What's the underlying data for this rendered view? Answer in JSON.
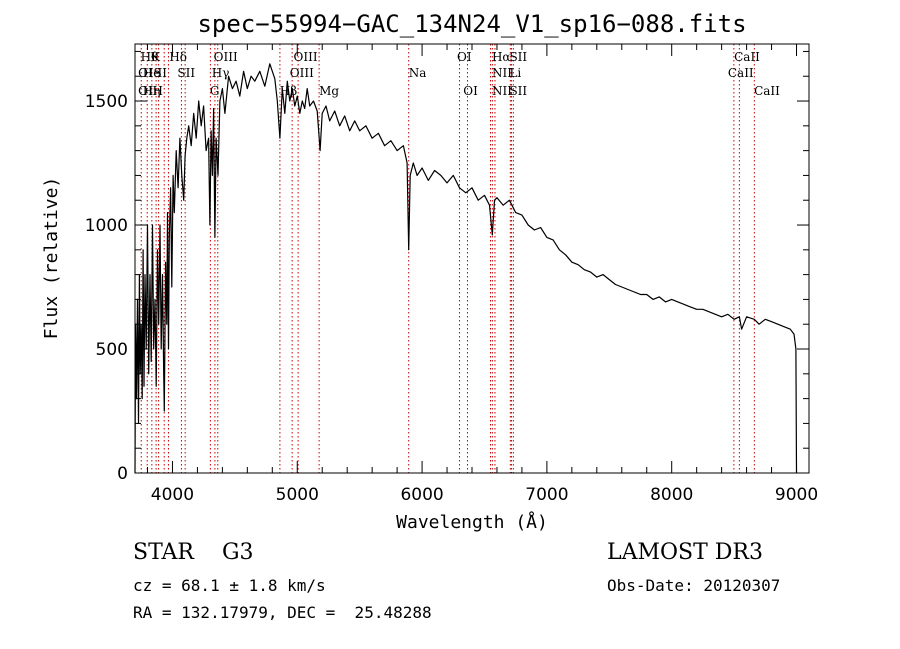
{
  "chart_data": {
    "type": "line",
    "title": "spec−55994−GAC_134N24_V1_sp16−088.fits",
    "xlabel": "Wavelength (Å)",
    "ylabel": "Flux (relative)",
    "xlim": [
      3700,
      9100
    ],
    "ylim": [
      0,
      1730
    ],
    "x_ticks": [
      4000,
      5000,
      6000,
      7000,
      8000,
      9000
    ],
    "y_ticks": [
      0,
      500,
      1000,
      1500
    ],
    "series": [
      {
        "name": "flux",
        "x": [
          3700,
          3705,
          3712,
          3720,
          3728,
          3735,
          3742,
          3750,
          3758,
          3765,
          3772,
          3780,
          3790,
          3800,
          3810,
          3820,
          3830,
          3840,
          3850,
          3860,
          3870,
          3880,
          3890,
          3900,
          3910,
          3920,
          3930,
          3935,
          3945,
          3955,
          3960,
          3968,
          3975,
          3985,
          3995,
          4005,
          4015,
          4030,
          4045,
          4060,
          4075,
          4090,
          4101,
          4115,
          4130,
          4150,
          4170,
          4190,
          4210,
          4230,
          4250,
          4270,
          4290,
          4300,
          4310,
          4320,
          4330,
          4340,
          4350,
          4365,
          4380,
          4400,
          4420,
          4450,
          4480,
          4510,
          4540,
          4570,
          4600,
          4630,
          4660,
          4700,
          4740,
          4780,
          4820,
          4840,
          4861,
          4880,
          4900,
          4920,
          4940,
          4960,
          4980,
          5000,
          5020,
          5040,
          5060,
          5080,
          5100,
          5130,
          5160,
          5183,
          5200,
          5230,
          5260,
          5300,
          5340,
          5380,
          5420,
          5460,
          5500,
          5550,
          5600,
          5650,
          5700,
          5750,
          5800,
          5850,
          5880,
          5893,
          5905,
          5930,
          5960,
          6000,
          6050,
          6100,
          6150,
          6200,
          6250,
          6300,
          6350,
          6400,
          6450,
          6500,
          6540,
          6563,
          6580,
          6600,
          6650,
          6700,
          6750,
          6800,
          6850,
          6900,
          6950,
          7000,
          7050,
          7100,
          7150,
          7200,
          7250,
          7300,
          7350,
          7400,
          7450,
          7500,
          7550,
          7600,
          7650,
          7700,
          7750,
          7800,
          7850,
          7900,
          7950,
          8000,
          8050,
          8100,
          8150,
          8200,
          8250,
          8300,
          8350,
          8400,
          8450,
          8500,
          8542,
          8560,
          8600,
          8662,
          8700,
          8750,
          8800,
          8850,
          8900,
          8950,
          8980,
          8995,
          9000
        ],
        "y": [
          0,
          600,
          300,
          700,
          200,
          800,
          400,
          600,
          300,
          900,
          350,
          800,
          500,
          1000,
          400,
          800,
          450,
          1000,
          500,
          700,
          350,
          900,
          600,
          1000,
          500,
          800,
          400,
          250,
          850,
          600,
          1050,
          500,
          950,
          1150,
          750,
          1200,
          1050,
          1300,
          1150,
          1350,
          1200,
          1100,
          1280,
          1350,
          1400,
          1320,
          1450,
          1350,
          1500,
          1400,
          1480,
          1300,
          1350,
          1000,
          1380,
          1200,
          1470,
          950,
          1350,
          1200,
          1500,
          1550,
          1450,
          1600,
          1550,
          1580,
          1520,
          1620,
          1550,
          1600,
          1580,
          1620,
          1560,
          1650,
          1590,
          1500,
          1350,
          1550,
          1450,
          1580,
          1500,
          1550,
          1480,
          1520,
          1450,
          1500,
          1470,
          1550,
          1480,
          1500,
          1460,
          1300,
          1450,
          1480,
          1420,
          1460,
          1400,
          1440,
          1380,
          1420,
          1380,
          1400,
          1350,
          1370,
          1320,
          1340,
          1300,
          1320,
          1250,
          900,
          1200,
          1250,
          1200,
          1230,
          1180,
          1220,
          1200,
          1170,
          1200,
          1150,
          1130,
          1150,
          1100,
          1120,
          1080,
          960,
          1100,
          1110,
          1080,
          1100,
          1050,
          1040,
          1000,
          980,
          990,
          950,
          940,
          900,
          880,
          850,
          840,
          820,
          810,
          790,
          800,
          780,
          760,
          750,
          740,
          730,
          720,
          720,
          700,
          710,
          690,
          700,
          690,
          680,
          670,
          660,
          660,
          650,
          640,
          630,
          640,
          620,
          630,
          580,
          630,
          620,
          600,
          620,
          610,
          600,
          590,
          580,
          560,
          500,
          0
        ]
      }
    ],
    "lines": [
      {
        "x": 3750,
        "labels": [
          "Hθ",
          "OII",
          "OII"
        ]
      },
      {
        "x": 3798,
        "labels": []
      },
      {
        "x": 3835,
        "labels": [
          "K"
        ]
      },
      {
        "x": 3869,
        "labels": [
          "He"
        ]
      },
      {
        "x": 3889,
        "labels": [
          "Hη"
        ]
      },
      {
        "x": 3934,
        "labels": [
          "K"
        ]
      },
      {
        "x": 3968,
        "labels": [
          "H"
        ]
      },
      {
        "x": 4072,
        "labels": []
      },
      {
        "x": 4102,
        "labels": [
          "Hδ",
          "SII"
        ]
      },
      {
        "x": 4304,
        "labels": [
          "G"
        ]
      },
      {
        "x": 4340,
        "labels": [
          "Hγ"
        ]
      },
      {
        "x": 4363,
        "labels": [
          "OIII"
        ]
      },
      {
        "x": 4861,
        "labels": [
          "Hβ"
        ]
      },
      {
        "x": 4959,
        "labels": [
          "OIII"
        ]
      },
      {
        "x": 5007,
        "labels": [
          "OIII"
        ]
      },
      {
        "x": 5175,
        "labels": [
          "Mg"
        ]
      },
      {
        "x": 5893,
        "labels": [
          "Na"
        ]
      },
      {
        "x": 6300,
        "labels": [
          "OI"
        ]
      },
      {
        "x": 6364,
        "labels": [
          "OI"
        ]
      },
      {
        "x": 6548,
        "labels": [
          "NII"
        ]
      },
      {
        "x": 6563,
        "labels": [
          "Hα"
        ]
      },
      {
        "x": 6584,
        "labels": [
          "NII"
        ]
      },
      {
        "x": 6707,
        "labels": [
          "Li"
        ]
      },
      {
        "x": 6716,
        "labels": [
          "SII"
        ]
      },
      {
        "x": 6731,
        "labels": [
          "SII"
        ]
      },
      {
        "x": 8498,
        "labels": [
          "CaII"
        ]
      },
      {
        "x": 8542,
        "labels": [
          "CaII"
        ]
      },
      {
        "x": 8662,
        "labels": [
          "CaII"
        ]
      }
    ],
    "line_labels": [
      {
        "x": 3745,
        "row": 1,
        "text": "Hθ"
      },
      {
        "x": 3828,
        "row": 1,
        "text": "K"
      },
      {
        "x": 3725,
        "row": 2,
        "text": "OI"
      },
      {
        "x": 3762,
        "row": 2,
        "text": "He"
      },
      {
        "x": 3810,
        "row": 2,
        "text": "I"
      },
      {
        "x": 3848,
        "row": 2,
        "text": "S"
      },
      {
        "x": 3880,
        "row": 2,
        "text": "II"
      },
      {
        "x": 3725,
        "row": 3,
        "text": "OI"
      },
      {
        "x": 3762,
        "row": 3,
        "text": "Hη"
      },
      {
        "x": 3840,
        "row": 3,
        "text": "H"
      },
      {
        "x": 3975,
        "row": 1,
        "text": "Hδ"
      },
      {
        "x": 4040,
        "row": 2,
        "text": "SII"
      },
      {
        "x": 4330,
        "row": 1,
        "text": "OIII"
      },
      {
        "x": 4315,
        "row": 2,
        "text": "Hγ"
      },
      {
        "x": 4300,
        "row": 3,
        "text": "G"
      },
      {
        "x": 4970,
        "row": 1,
        "text": "OIII"
      },
      {
        "x": 4940,
        "row": 2,
        "text": "OIII"
      },
      {
        "x": 4860,
        "row": 3,
        "text": "Hβ"
      },
      {
        "x": 5175,
        "row": 3,
        "text": "Mg"
      },
      {
        "x": 5893,
        "row": 2,
        "text": "Na"
      },
      {
        "x": 6280,
        "row": 1,
        "text": "OI"
      },
      {
        "x": 6330,
        "row": 3,
        "text": "OI"
      },
      {
        "x": 6560,
        "row": 1,
        "text": "Hα"
      },
      {
        "x": 6700,
        "row": 1,
        "text": "SII"
      },
      {
        "x": 6560,
        "row": 2,
        "text": "NII"
      },
      {
        "x": 6700,
        "row": 2,
        "text": "Li"
      },
      {
        "x": 6560,
        "row": 3,
        "text": "NII"
      },
      {
        "x": 6700,
        "row": 3,
        "text": "SII"
      },
      {
        "x": 8500,
        "row": 1,
        "text": "CaII"
      },
      {
        "x": 8450,
        "row": 2,
        "text": "CaII"
      },
      {
        "x": 8660,
        "row": 3,
        "text": "CaII"
      }
    ],
    "grid": false,
    "line_style": "red dotted vertical"
  },
  "info": {
    "star": "STAR    G3",
    "cz": "cz = 68.1 ± 1.8 km/s",
    "radec": "RA = 132.17979, DEC =  25.48288",
    "survey": "LAMOST DR3",
    "obsdate": "Obs-Date: 20120307"
  },
  "colors": {
    "spectrum": "#000000",
    "line_markers": "#cc0000",
    "background": "#ffffff"
  }
}
